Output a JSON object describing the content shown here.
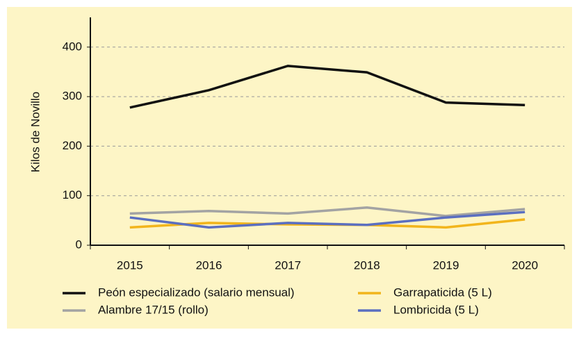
{
  "chart_data": {
    "type": "line",
    "y_label": "Kilos de Novillo",
    "categories": [
      "2015",
      "2016",
      "2017",
      "2018",
      "2019",
      "2020"
    ],
    "series": [
      {
        "name": "Peón especializado (salario mensual)",
        "color": "#111111",
        "values": [
          278,
          313,
          362,
          349,
          288,
          283
        ]
      },
      {
        "name": "Garrapaticida (5 L)",
        "color": "#f2b51c",
        "values": [
          36,
          45,
          42,
          41,
          36,
          52
        ]
      },
      {
        "name": "Alambre 17/15 (rollo)",
        "color": "#a3a3a3",
        "values": [
          64,
          69,
          64,
          76,
          59,
          73
        ]
      },
      {
        "name": "Lombricida (5 L)",
        "color": "#5b6fc0",
        "values": [
          56,
          36,
          45,
          41,
          56,
          67
        ]
      }
    ],
    "ylim": [
      0,
      460
    ],
    "yticks": [
      0,
      100,
      200,
      300,
      400
    ],
    "grid": true
  }
}
